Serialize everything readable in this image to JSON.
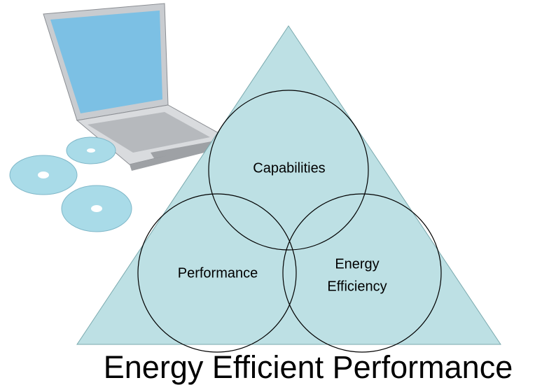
{
  "title": "Energy Efficient Performance",
  "nodes": [
    {
      "lines": [
        "Capabilities"
      ]
    },
    {
      "lines": [
        "Performance"
      ]
    },
    {
      "lines": [
        "Energy",
        "Efficiency"
      ]
    }
  ]
}
